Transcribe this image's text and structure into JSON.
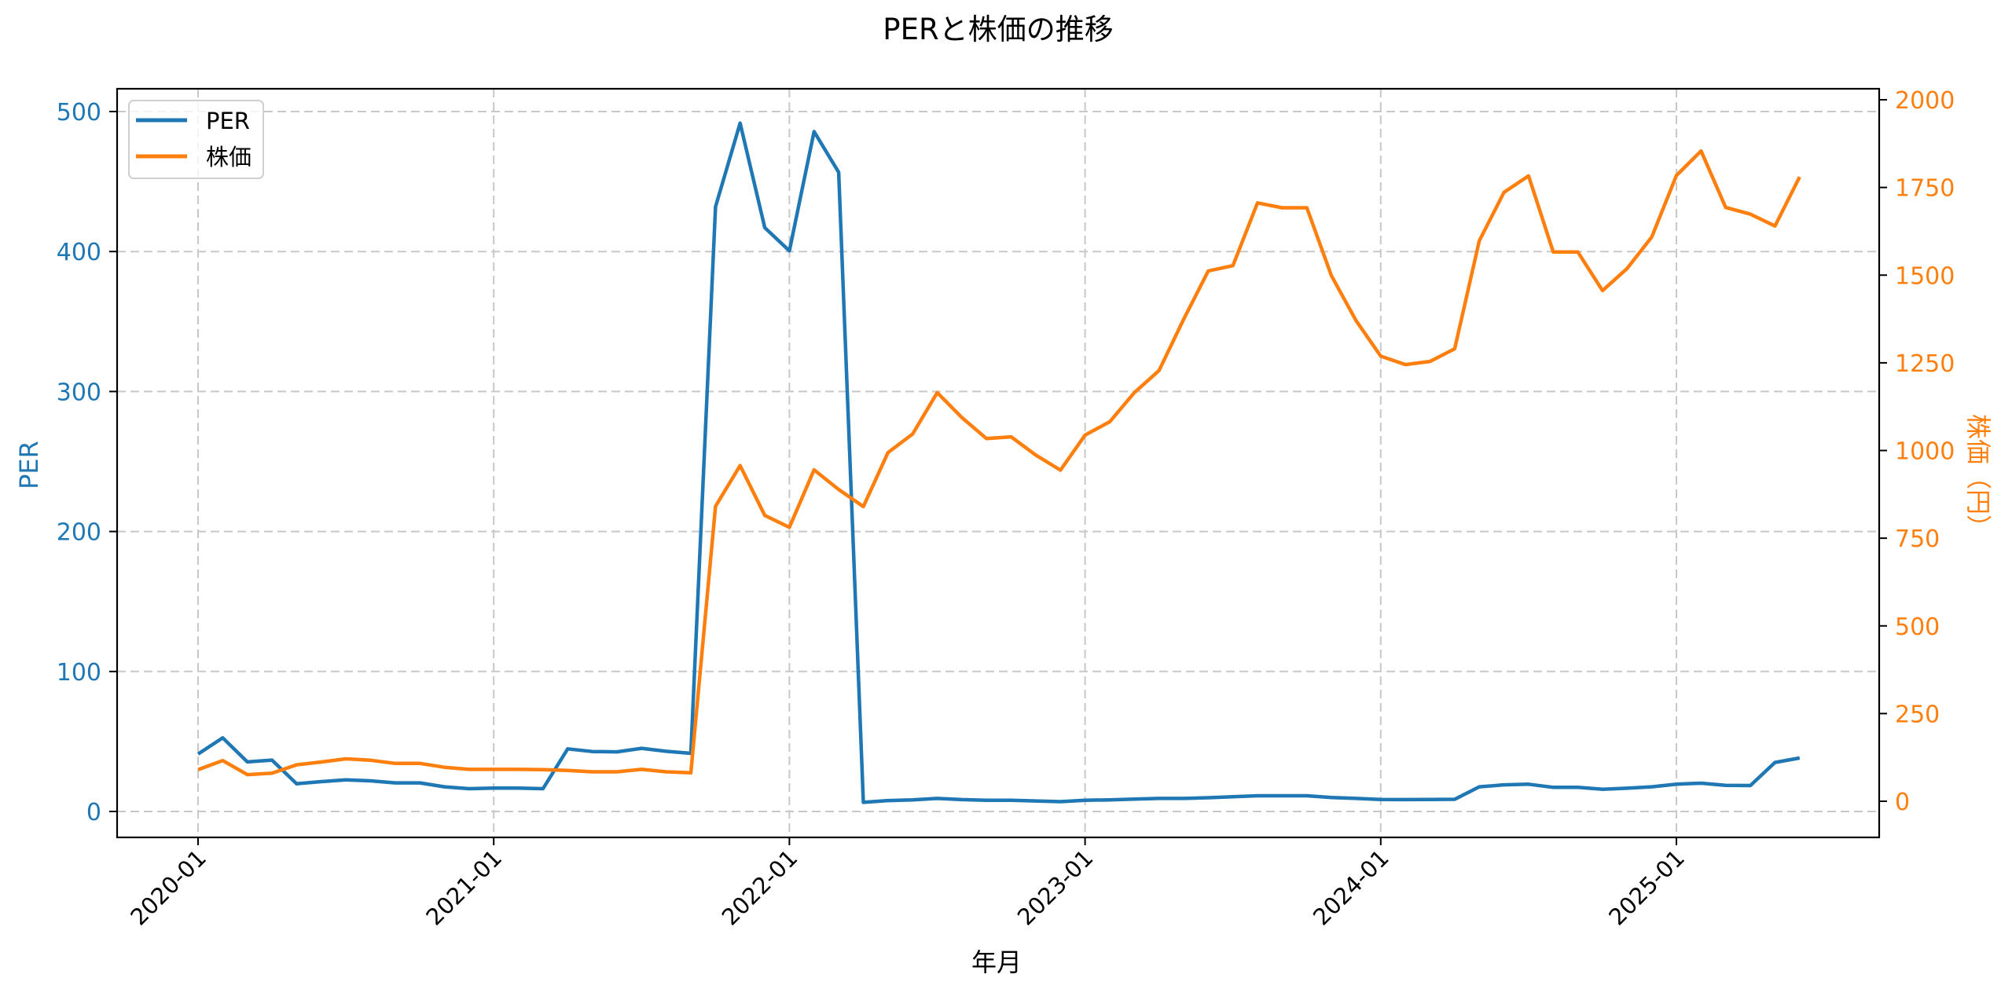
{
  "chart_data": {
    "type": "line",
    "title": "PERと株価の推移",
    "xlabel": "年月",
    "ylabel_left": "PER",
    "ylabel_right": "株価（円）",
    "ylim_left": [
      -18,
      518
    ],
    "ylim_right": [
      -105,
      2085
    ],
    "yticks_left": [
      0,
      100,
      200,
      300,
      400,
      500
    ],
    "yticks_right": [
      0,
      250,
      500,
      750,
      1000,
      1250,
      1500,
      1750,
      2000
    ],
    "xticks": [
      "2020-01",
      "2021-01",
      "2022-01",
      "2023-01",
      "2024-01",
      "2025-01"
    ],
    "grid": true,
    "legend_position": "upper left",
    "colors": {
      "PER": "#1f77b4",
      "株価": "#ff7f0e",
      "grid": "#c8c8c8",
      "axis": "#000000"
    },
    "x": [
      "2020-01",
      "2020-02",
      "2020-03",
      "2020-04",
      "2020-05",
      "2020-06",
      "2020-07",
      "2020-08",
      "2020-09",
      "2020-10",
      "2020-11",
      "2020-12",
      "2021-01",
      "2021-02",
      "2021-03",
      "2021-04",
      "2021-05",
      "2021-06",
      "2021-07",
      "2021-08",
      "2021-09",
      "2021-10",
      "2021-11",
      "2021-12",
      "2022-01",
      "2022-02",
      "2022-03",
      "2022-04",
      "2022-05",
      "2022-06",
      "2022-07",
      "2022-08",
      "2022-09",
      "2022-10",
      "2022-11",
      "2022-12",
      "2023-01",
      "2023-02",
      "2023-03",
      "2023-04",
      "2023-05",
      "2023-06",
      "2023-07",
      "2023-08",
      "2023-09",
      "2023-10",
      "2023-11",
      "2023-12",
      "2024-01",
      "2024-02",
      "2024-03",
      "2024-04",
      "2024-05",
      "2024-06",
      "2024-07",
      "2024-08",
      "2024-09",
      "2024-10",
      "2024-11",
      "2024-12",
      "2025-01",
      "2025-02",
      "2025-03",
      "2025-04",
      "2025-05",
      "2025-06"
    ],
    "series": [
      {
        "name": "PER",
        "axis": "left",
        "values": [
          41,
          52.6,
          35.4,
          36.7,
          19.8,
          21.3,
          22.6,
          21.9,
          20.4,
          20.4,
          17.6,
          16.3,
          16.7,
          16.7,
          16.3,
          44.7,
          42.8,
          42.6,
          45.1,
          43,
          41.5,
          432,
          491.7,
          417,
          400.5,
          485.7,
          456.6,
          6.5,
          7.8,
          8.3,
          9.3,
          8.5,
          8,
          8,
          7.5,
          7,
          8,
          8.3,
          8.8,
          9.3,
          9.3,
          9.8,
          10.5,
          11.2,
          11.2,
          11.2,
          10,
          9.3,
          8.6,
          8.5,
          8.6,
          8.7,
          17.6,
          19,
          19.5,
          17.2,
          17.2,
          15.9,
          16.6,
          17.6,
          19.5,
          20.2,
          18.7,
          18.5,
          35,
          38.2
        ]
      },
      {
        "name": "株価",
        "axis": "right",
        "values": [
          90,
          116,
          76,
          80,
          104,
          112,
          121,
          117,
          108,
          108,
          97,
          91,
          91,
          91,
          90,
          88,
          84,
          84,
          91,
          84,
          81,
          841,
          957,
          815,
          781,
          945,
          889,
          840,
          994,
          1047,
          1165,
          1094,
          1034,
          1039,
          987,
          944,
          1044,
          1082,
          1165,
          1228,
          1374,
          1512,
          1527,
          1706,
          1692,
          1692,
          1498,
          1370,
          1269,
          1245,
          1254,
          1290,
          1598,
          1736,
          1783,
          1566,
          1566,
          1456,
          1519,
          1609,
          1784,
          1854,
          1693,
          1674,
          1640,
          1780
        ]
      }
    ]
  },
  "legend": {
    "items": [
      {
        "label": "PER",
        "color": "#1f77b4"
      },
      {
        "label": "株価",
        "color": "#ff7f0e"
      }
    ]
  }
}
